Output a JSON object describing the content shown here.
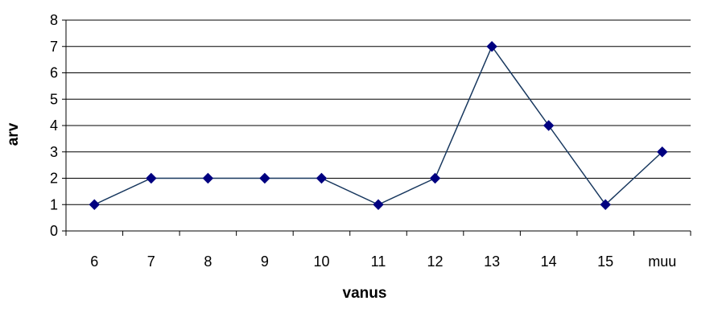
{
  "chart_data": {
    "type": "line",
    "title": "",
    "xlabel": "vanus",
    "ylabel": "arv",
    "categories": [
      "6",
      "7",
      "8",
      "9",
      "10",
      "11",
      "12",
      "13",
      "14",
      "15",
      "muu"
    ],
    "series": [
      {
        "values": [
          1,
          2,
          2,
          2,
          2,
          1,
          2,
          7,
          4,
          1,
          3
        ]
      }
    ],
    "ylim": [
      0,
      8
    ],
    "yticks": [
      "0",
      "1",
      "2",
      "3",
      "4",
      "5",
      "6",
      "7",
      "8"
    ],
    "grid": "horizontal",
    "legend": "none",
    "colors": {
      "line": "#17375e",
      "marker": "#000080",
      "grid": "#000000",
      "axis": "#000000"
    }
  }
}
